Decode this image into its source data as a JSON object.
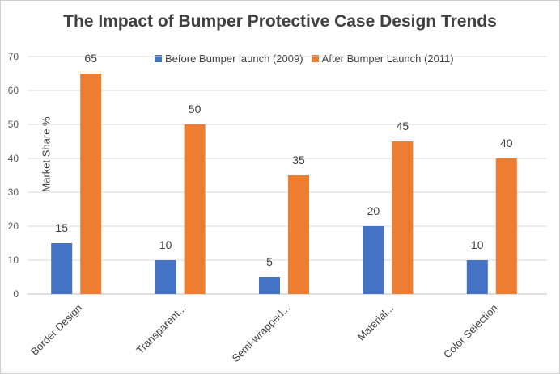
{
  "chart_data": {
    "type": "bar",
    "title": "The Impact of Bumper Protective Case Design Trends",
    "xlabel": "",
    "ylabel": "Market Share %",
    "ylim": [
      0,
      70
    ],
    "yticks": [
      0,
      10,
      20,
      30,
      40,
      50,
      60,
      70
    ],
    "grid": true,
    "legend_position": "top",
    "categories": [
      "Border Design",
      "Transparent...",
      "Semi-wrapped...",
      "Material...",
      "Color Selection"
    ],
    "series": [
      {
        "name": "Before Bumper launch (2009)",
        "color": "#4472C4",
        "values": [
          15,
          10,
          5,
          20,
          10
        ]
      },
      {
        "name": "After Bumper Launch (2011)",
        "color": "#ED7D31",
        "values": [
          65,
          50,
          35,
          45,
          40
        ]
      }
    ]
  }
}
